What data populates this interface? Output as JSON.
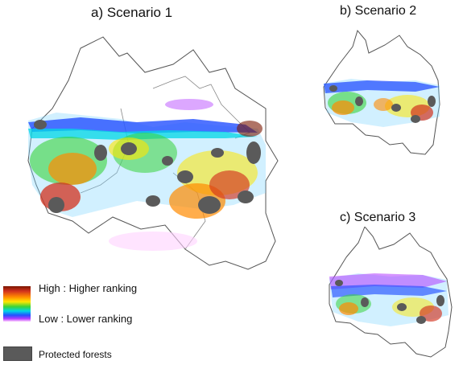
{
  "titles": {
    "a": "a) Scenario 1",
    "b": "b) Scenario 2",
    "c": "c) Scenario 3"
  },
  "legend": {
    "high": "High : Higher ranking",
    "low": "Low : Lower ranking",
    "protected": "Protected forests"
  },
  "colors": {
    "ramp": [
      "#7a1500",
      "#d2321e",
      "#ff8a00",
      "#ffe600",
      "#38d43a",
      "#00d7e6",
      "#2450ff",
      "#b23cff",
      "#ffd2ff"
    ],
    "protected": "#5a5a5a",
    "boundary": "#555555"
  }
}
